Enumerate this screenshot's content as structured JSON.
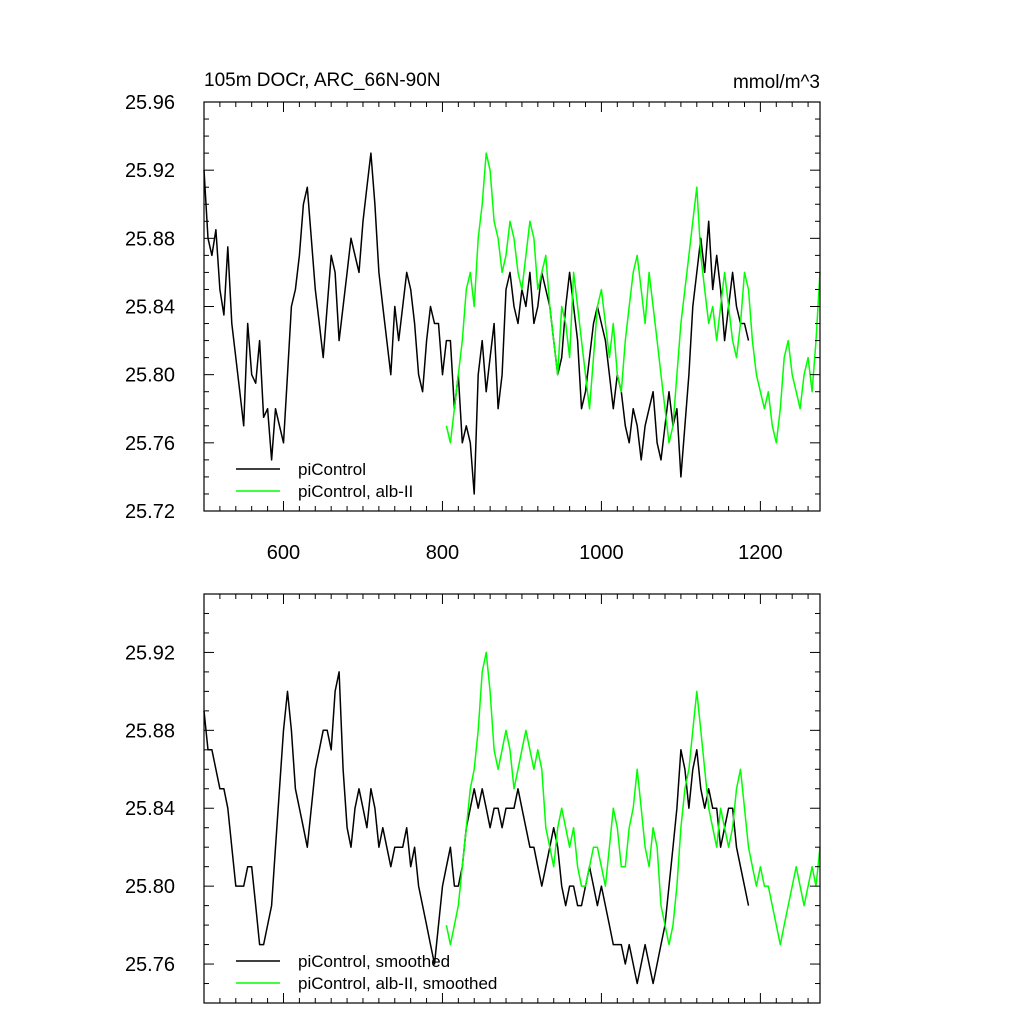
{
  "chart_data": [
    {
      "type": "line",
      "title": "105m DOCr, ARC_66N-90N",
      "units": "mmol/m^3",
      "xlim": [
        500,
        1275
      ],
      "ylim": [
        25.72,
        25.96
      ],
      "xticks": [
        600,
        800,
        1000,
        1200
      ],
      "yticks": [
        25.72,
        25.76,
        25.8,
        25.84,
        25.88,
        25.92,
        25.96
      ],
      "xtick_labels": [
        "600",
        "800",
        "1000",
        "1200"
      ],
      "ytick_labels": [
        "25.72",
        "25.76",
        "25.80",
        "25.84",
        "25.88",
        "25.92",
        "25.96"
      ],
      "grid": false,
      "legend_position": "bottom-left",
      "series": [
        {
          "name": "piControl",
          "color": "#000000",
          "x": [
            500,
            505,
            510,
            515,
            520,
            525,
            530,
            535,
            540,
            545,
            550,
            555,
            560,
            565,
            570,
            575,
            580,
            585,
            590,
            595,
            600,
            605,
            610,
            615,
            620,
            625,
            630,
            635,
            640,
            645,
            650,
            655,
            660,
            665,
            670,
            675,
            680,
            685,
            690,
            695,
            700,
            705,
            710,
            715,
            720,
            725,
            730,
            735,
            740,
            745,
            750,
            755,
            760,
            765,
            770,
            775,
            780,
            785,
            790,
            795,
            800,
            805,
            810,
            815,
            820,
            825,
            830,
            835,
            840,
            845,
            850,
            855,
            860,
            865,
            870,
            875,
            880,
            885,
            890,
            895,
            900,
            905,
            910,
            915,
            920,
            925,
            930,
            935,
            940,
            945,
            950,
            955,
            960,
            965,
            970,
            975,
            980,
            985,
            990,
            995,
            1000,
            1005,
            1010,
            1015,
            1020,
            1025,
            1030,
            1035,
            1040,
            1045,
            1050,
            1055,
            1060,
            1065,
            1070,
            1075,
            1080,
            1085,
            1090,
            1095,
            1100,
            1105,
            1110,
            1115,
            1120,
            1125,
            1130,
            1135,
            1140,
            1145,
            1150,
            1155,
            1160,
            1165,
            1170,
            1175,
            1180,
            1185
          ],
          "values": [
            25.92,
            25.88,
            25.87,
            25.885,
            25.85,
            25.835,
            25.875,
            25.83,
            25.81,
            25.79,
            25.77,
            25.83,
            25.8,
            25.795,
            25.82,
            25.775,
            25.78,
            25.75,
            25.78,
            25.77,
            25.76,
            25.8,
            25.84,
            25.85,
            25.87,
            25.9,
            25.91,
            25.88,
            25.85,
            25.83,
            25.81,
            25.84,
            25.87,
            25.86,
            25.82,
            25.84,
            25.86,
            25.88,
            25.87,
            25.86,
            25.89,
            25.91,
            25.93,
            25.9,
            25.86,
            25.84,
            25.82,
            25.8,
            25.84,
            25.82,
            25.84,
            25.86,
            25.85,
            25.83,
            25.8,
            25.79,
            25.82,
            25.84,
            25.83,
            25.83,
            25.8,
            25.82,
            25.82,
            25.78,
            25.8,
            25.76,
            25.77,
            25.76,
            25.73,
            25.8,
            25.82,
            25.79,
            25.81,
            25.83,
            25.78,
            25.8,
            25.85,
            25.86,
            25.84,
            25.83,
            25.85,
            25.84,
            25.86,
            25.83,
            25.84,
            25.86,
            25.85,
            25.84,
            25.82,
            25.8,
            25.81,
            25.84,
            25.86,
            25.84,
            25.82,
            25.78,
            25.79,
            25.81,
            25.83,
            25.84,
            25.83,
            25.82,
            25.8,
            25.78,
            25.8,
            25.79,
            25.77,
            25.76,
            25.78,
            25.77,
            25.75,
            25.77,
            25.78,
            25.79,
            25.76,
            25.75,
            25.77,
            25.79,
            25.77,
            25.78,
            25.74,
            25.77,
            25.8,
            25.84,
            25.86,
            25.88,
            25.86,
            25.89,
            25.85,
            25.87,
            25.85,
            25.82,
            25.84,
            25.86,
            25.84,
            25.83,
            25.83,
            25.82
          ]
        },
        {
          "name": "piControl, alb-II",
          "color": "#00ff00",
          "x": [
            805,
            810,
            815,
            820,
            825,
            830,
            835,
            840,
            845,
            850,
            855,
            860,
            865,
            870,
            875,
            880,
            885,
            890,
            895,
            900,
            905,
            910,
            915,
            920,
            925,
            930,
            935,
            940,
            945,
            950,
            955,
            960,
            965,
            970,
            975,
            980,
            985,
            990,
            995,
            1000,
            1005,
            1010,
            1015,
            1020,
            1025,
            1030,
            1035,
            1040,
            1045,
            1050,
            1055,
            1060,
            1065,
            1070,
            1075,
            1080,
            1085,
            1090,
            1095,
            1100,
            1105,
            1110,
            1115,
            1120,
            1125,
            1130,
            1135,
            1140,
            1145,
            1150,
            1155,
            1160,
            1165,
            1170,
            1175,
            1180,
            1185,
            1190,
            1195,
            1200,
            1205,
            1210,
            1215,
            1220,
            1225,
            1230,
            1235,
            1240,
            1245,
            1250,
            1255,
            1260,
            1265,
            1270,
            1275
          ],
          "values": [
            25.77,
            25.76,
            25.78,
            25.8,
            25.82,
            25.85,
            25.86,
            25.84,
            25.88,
            25.9,
            25.93,
            25.92,
            25.89,
            25.88,
            25.86,
            25.87,
            25.89,
            25.88,
            25.86,
            25.85,
            25.87,
            25.89,
            25.88,
            25.85,
            25.86,
            25.87,
            25.84,
            25.82,
            25.8,
            25.84,
            25.83,
            25.81,
            25.86,
            25.84,
            25.82,
            25.8,
            25.78,
            25.81,
            25.84,
            25.85,
            25.83,
            25.81,
            25.83,
            25.8,
            25.79,
            25.82,
            25.84,
            25.86,
            25.87,
            25.85,
            25.83,
            25.86,
            25.84,
            25.82,
            25.8,
            25.78,
            25.76,
            25.77,
            25.8,
            25.83,
            25.85,
            25.87,
            25.89,
            25.91,
            25.87,
            25.85,
            25.83,
            25.84,
            25.82,
            25.84,
            25.86,
            25.84,
            25.82,
            25.81,
            25.83,
            25.86,
            25.85,
            25.82,
            25.8,
            25.79,
            25.78,
            25.79,
            25.77,
            25.76,
            25.78,
            25.81,
            25.82,
            25.8,
            25.79,
            25.78,
            25.8,
            25.81,
            25.79,
            25.82,
            25.86
          ]
        }
      ]
    },
    {
      "type": "line",
      "xlim": [
        500,
        1275
      ],
      "ylim": [
        25.74,
        25.95
      ],
      "xticks": [
        600,
        800,
        1000,
        1200
      ],
      "yticks": [
        25.76,
        25.8,
        25.84,
        25.88,
        25.92
      ],
      "xtick_labels": [],
      "ytick_labels": [
        "25.76",
        "25.80",
        "25.84",
        "25.88",
        "25.92"
      ],
      "grid": false,
      "legend_position": "bottom-left",
      "series": [
        {
          "name": "piControl, smoothed",
          "color": "#000000",
          "x": [
            500,
            505,
            510,
            515,
            520,
            525,
            530,
            535,
            540,
            545,
            550,
            555,
            560,
            565,
            570,
            575,
            580,
            585,
            590,
            595,
            600,
            605,
            610,
            615,
            620,
            625,
            630,
            635,
            640,
            645,
            650,
            655,
            660,
            665,
            670,
            675,
            680,
            685,
            690,
            695,
            700,
            705,
            710,
            715,
            720,
            725,
            730,
            735,
            740,
            745,
            750,
            755,
            760,
            765,
            770,
            775,
            780,
            785,
            790,
            795,
            800,
            805,
            810,
            815,
            820,
            825,
            830,
            835,
            840,
            845,
            850,
            855,
            860,
            865,
            870,
            875,
            880,
            885,
            890,
            895,
            900,
            905,
            910,
            915,
            920,
            925,
            930,
            935,
            940,
            945,
            950,
            955,
            960,
            965,
            970,
            975,
            980,
            985,
            990,
            995,
            1000,
            1005,
            1010,
            1015,
            1020,
            1025,
            1030,
            1035,
            1040,
            1045,
            1050,
            1055,
            1060,
            1065,
            1070,
            1075,
            1080,
            1085,
            1090,
            1095,
            1100,
            1105,
            1110,
            1115,
            1120,
            1125,
            1130,
            1135,
            1140,
            1145,
            1150,
            1155,
            1160,
            1165,
            1170,
            1175,
            1180,
            1185
          ],
          "values": [
            25.89,
            25.87,
            25.87,
            25.86,
            25.85,
            25.85,
            25.84,
            25.82,
            25.8,
            25.8,
            25.8,
            25.81,
            25.81,
            25.79,
            25.77,
            25.77,
            25.78,
            25.79,
            25.82,
            25.85,
            25.88,
            25.9,
            25.88,
            25.85,
            25.84,
            25.83,
            25.82,
            25.84,
            25.86,
            25.87,
            25.88,
            25.88,
            25.87,
            25.9,
            25.91,
            25.86,
            25.83,
            25.82,
            25.84,
            25.85,
            25.84,
            25.83,
            25.85,
            25.84,
            25.82,
            25.83,
            25.82,
            25.81,
            25.82,
            25.82,
            25.82,
            25.83,
            25.81,
            25.82,
            25.8,
            25.79,
            25.78,
            25.77,
            25.76,
            25.78,
            25.8,
            25.81,
            25.82,
            25.8,
            25.8,
            25.81,
            25.83,
            25.84,
            25.85,
            25.84,
            25.85,
            25.84,
            25.83,
            25.84,
            25.84,
            25.83,
            25.84,
            25.84,
            25.84,
            25.85,
            25.84,
            25.83,
            25.82,
            25.82,
            25.81,
            25.8,
            25.81,
            25.82,
            25.83,
            25.82,
            25.8,
            25.79,
            25.8,
            25.8,
            25.79,
            25.79,
            25.8,
            25.81,
            25.8,
            25.79,
            25.8,
            25.79,
            25.78,
            25.77,
            25.77,
            25.77,
            25.76,
            25.77,
            25.76,
            25.75,
            25.76,
            25.77,
            25.76,
            25.75,
            25.76,
            25.77,
            25.78,
            25.8,
            25.82,
            25.84,
            25.87,
            25.86,
            25.84,
            25.86,
            25.87,
            25.85,
            25.84,
            25.85,
            25.84,
            25.84,
            25.82,
            25.83,
            25.84,
            25.84,
            25.82,
            25.81,
            25.8,
            25.79
          ]
        },
        {
          "name": "piControl, alb-II, smoothed",
          "color": "#00ff00",
          "x": [
            805,
            810,
            815,
            820,
            825,
            830,
            835,
            840,
            845,
            850,
            855,
            860,
            865,
            870,
            875,
            880,
            885,
            890,
            895,
            900,
            905,
            910,
            915,
            920,
            925,
            930,
            935,
            940,
            945,
            950,
            955,
            960,
            965,
            970,
            975,
            980,
            985,
            990,
            995,
            1000,
            1005,
            1010,
            1015,
            1020,
            1025,
            1030,
            1035,
            1040,
            1045,
            1050,
            1055,
            1060,
            1065,
            1070,
            1075,
            1080,
            1085,
            1090,
            1095,
            1100,
            1105,
            1110,
            1115,
            1120,
            1125,
            1130,
            1135,
            1140,
            1145,
            1150,
            1155,
            1160,
            1165,
            1170,
            1175,
            1180,
            1185,
            1190,
            1195,
            1200,
            1205,
            1210,
            1215,
            1220,
            1225,
            1230,
            1235,
            1240,
            1245,
            1250,
            1255,
            1260,
            1265,
            1270,
            1275
          ],
          "values": [
            25.78,
            25.77,
            25.78,
            25.79,
            25.81,
            25.83,
            25.85,
            25.86,
            25.88,
            25.91,
            25.92,
            25.9,
            25.87,
            25.86,
            25.87,
            25.88,
            25.87,
            25.85,
            25.86,
            25.87,
            25.88,
            25.87,
            25.86,
            25.87,
            25.86,
            25.83,
            25.82,
            25.81,
            25.83,
            25.84,
            25.83,
            25.82,
            25.83,
            25.81,
            25.8,
            25.8,
            25.81,
            25.82,
            25.82,
            25.81,
            25.8,
            25.82,
            25.84,
            25.83,
            25.81,
            25.81,
            25.83,
            25.84,
            25.86,
            25.84,
            25.82,
            25.81,
            25.83,
            25.82,
            25.79,
            25.78,
            25.77,
            25.78,
            25.8,
            25.83,
            25.85,
            25.86,
            25.88,
            25.9,
            25.88,
            25.86,
            25.84,
            25.83,
            25.82,
            25.84,
            25.83,
            25.82,
            25.83,
            25.85,
            25.86,
            25.84,
            25.82,
            25.81,
            25.8,
            25.81,
            25.8,
            25.8,
            25.79,
            25.78,
            25.77,
            25.78,
            25.79,
            25.8,
            25.81,
            25.8,
            25.79,
            25.8,
            25.81,
            25.8,
            25.82
          ]
        }
      ]
    }
  ]
}
